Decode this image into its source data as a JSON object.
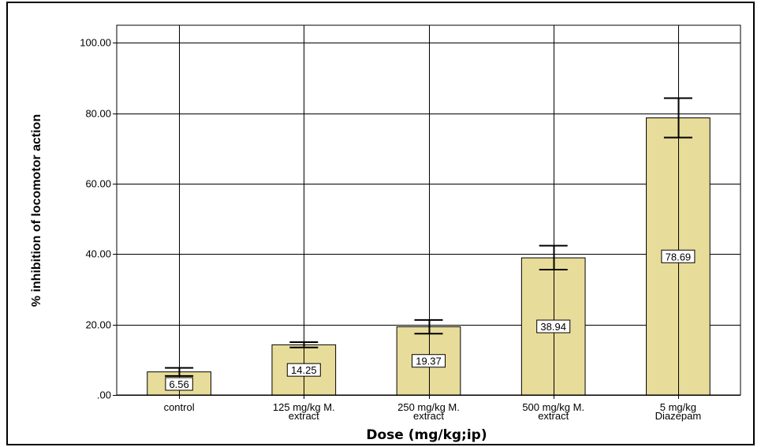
{
  "chart_data": {
    "type": "bar",
    "title": "",
    "xlabel": "Dose (mg/kg;ip)",
    "ylabel": "% inhibition of locomotor action",
    "categories": [
      [
        "control"
      ],
      [
        "125 mg/kg M.",
        "extract"
      ],
      [
        "250 mg/kg M.",
        "extract"
      ],
      [
        "500 mg/kg M.",
        "extract"
      ],
      [
        "5 mg/kg",
        "Diazepam"
      ]
    ],
    "values": [
      6.56,
      14.25,
      19.37,
      38.94,
      78.69
    ],
    "value_labels": [
      "6.56",
      "14.25",
      "19.37",
      "38.94",
      "78.69"
    ],
    "error_bars": [
      {
        "low": 5.4,
        "high": 7.7
      },
      {
        "low": 13.5,
        "high": 15.0
      },
      {
        "low": 17.4,
        "high": 21.3
      },
      {
        "low": 35.6,
        "high": 42.4
      },
      {
        "low": 73.1,
        "high": 84.3
      }
    ],
    "ylim": [
      0,
      105
    ],
    "yticks": [
      0,
      20,
      40,
      60,
      80,
      100
    ],
    "ytick_labels": [
      ".00",
      "20.00",
      "40.00",
      "60.00",
      "80.00",
      "100.00"
    ],
    "grid": true,
    "bar_color": "#e8dc9a",
    "grid_color": "#000000"
  }
}
